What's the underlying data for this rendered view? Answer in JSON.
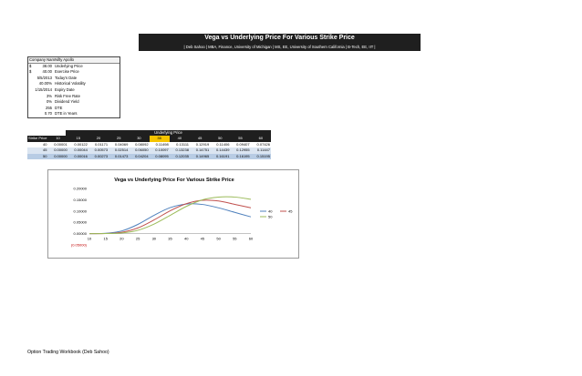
{
  "header": {
    "title": "Vega vs Underlying Price For Various Strike Price",
    "subtitle": "| Deb Sahoo | MBA, Finance, University of Michigan | MS, EE, University of Southern California | B-Tech, EE, IIT |"
  },
  "inputs": {
    "header_value": "Company Nam",
    "header_label": "Nifty Apollo",
    "rows": [
      {
        "currency": "$",
        "value": "38.00",
        "label": "Underlying Price"
      },
      {
        "currency": "$",
        "value": "40.00",
        "label": "Exercise Price"
      },
      {
        "currency": "",
        "value": "5/5/2013",
        "label": "Today's Date"
      },
      {
        "currency": "",
        "value": "40.00%",
        "label": "Historical Volatility"
      },
      {
        "currency": "",
        "value": "1/15/2014",
        "label": "Expiry Date"
      },
      {
        "currency": "",
        "value": "3%",
        "label": "Risk Free Rate"
      },
      {
        "currency": "",
        "value": "0%",
        "label": "Dividend Yield"
      },
      {
        "currency": "",
        "value": "255",
        "label": "DTE"
      },
      {
        "currency": "",
        "value": "0.70",
        "label": "DTE in Years"
      }
    ]
  },
  "grid": {
    "title": "Underlying Price",
    "row_header": "Strike Price",
    "underlying": [
      "10",
      "15",
      "20",
      "25",
      "30",
      "35",
      "40",
      "45",
      "50",
      "55",
      "60"
    ],
    "highlight_index": 5,
    "rows": [
      {
        "strike": "40",
        "values": [
          "0.00001",
          "0.00122",
          "0.01171",
          "0.04069",
          "0.08092",
          "0.11498",
          "0.13111",
          "0.12919",
          "0.11406",
          "0.09407",
          "0.07426"
        ]
      },
      {
        "strike": "45",
        "values": [
          "0.00000",
          "0.00044",
          "0.00573",
          "0.02514",
          "0.06050",
          "0.10097",
          "0.13238",
          "0.14751",
          "0.14439",
          "0.12955",
          "0.11447"
        ]
      },
      {
        "strike": "50",
        "values": [
          "0.00000",
          "0.00016",
          "0.00273",
          "0.01473",
          "0.04204",
          "0.08095",
          "0.12035",
          "0.14965",
          "0.16191",
          "0.16195",
          "0.15195"
        ]
      }
    ]
  },
  "chart_data": {
    "type": "line",
    "title": "Vega vs Underlying Price For Various Strike Price",
    "xlabel": "",
    "ylabel": "",
    "categories": [
      "10",
      "15",
      "20",
      "25",
      "30",
      "35",
      "40",
      "45",
      "50",
      "55",
      "60"
    ],
    "ylim": [
      -0.05,
      0.2
    ],
    "yticks": [
      "(0.05000)",
      "0.00000",
      "0.05000",
      "0.10000",
      "0.15000",
      "0.20000"
    ],
    "legend": "right",
    "series": [
      {
        "name": "40",
        "color": "#4f81bd",
        "values": [
          1e-05,
          0.00122,
          0.01171,
          0.04069,
          0.08092,
          0.11498,
          0.13111,
          0.12919,
          0.11406,
          0.09407,
          0.07426
        ]
      },
      {
        "name": "45",
        "color": "#c0504d",
        "values": [
          0.0,
          0.00044,
          0.00573,
          0.02514,
          0.0605,
          0.10097,
          0.13238,
          0.14751,
          0.14439,
          0.12955,
          0.11447
        ]
      },
      {
        "name": "50",
        "color": "#9bbb59",
        "values": [
          0.0,
          0.00016,
          0.00273,
          0.01473,
          0.04204,
          0.08095,
          0.12035,
          0.14965,
          0.16191,
          0.16195,
          0.15195
        ]
      }
    ]
  },
  "footer": {
    "text": "Option Trading Workbook (Deb Sahoo)"
  }
}
